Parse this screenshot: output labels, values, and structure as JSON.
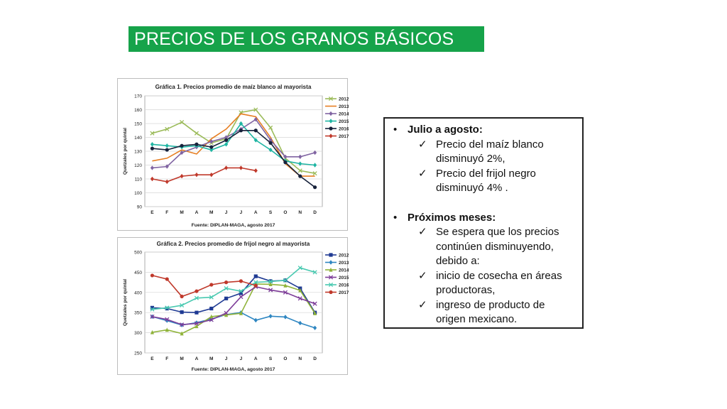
{
  "header": {
    "title": "PRECIOS DE LOS GRANOS BÁSICOS"
  },
  "colors": {
    "title_bg": "#16a34a"
  },
  "chart_data": [
    {
      "type": "line",
      "title": "Gráfica 1. Precios promedio de maíz blanco al mayorista",
      "ylabel": "Quetzales por quintal",
      "xlabel": "",
      "source": "Fuente: DIPLAN-MAGA, agosto 2017",
      "categories": [
        "E",
        "F",
        "M",
        "A",
        "M",
        "J",
        "J",
        "A",
        "S",
        "O",
        "N",
        "D"
      ],
      "ylim": [
        90,
        170
      ],
      "yticks": [
        90,
        100,
        110,
        120,
        130,
        140,
        150,
        160,
        170
      ],
      "grid": true,
      "legend_position": "right",
      "series": [
        {
          "name": "2012",
          "color": "#9bbb59",
          "marker": "x",
          "values": [
            143,
            146,
            151,
            143,
            136,
            139,
            158,
            160,
            147,
            125,
            116,
            114
          ]
        },
        {
          "name": "2013",
          "color": "#e67e22",
          "marker": "none",
          "values": [
            123,
            125,
            131,
            128,
            139,
            146,
            157,
            155,
            140,
            121,
            112,
            112
          ]
        },
        {
          "name": "2014",
          "color": "#8064a2",
          "marker": "diamond",
          "values": [
            118,
            119,
            129,
            133,
            137,
            140,
            146,
            153,
            138,
            126,
            126,
            129
          ]
        },
        {
          "name": "2015",
          "color": "#1fb5a3",
          "marker": "diamond",
          "values": [
            135,
            134,
            133,
            134,
            131,
            135,
            150,
            138,
            131,
            123,
            121,
            120
          ]
        },
        {
          "name": "2016",
          "color": "#17223b",
          "marker": "circle",
          "values": [
            132,
            131,
            134,
            135,
            133,
            138,
            145,
            145,
            136,
            122,
            112,
            104
          ]
        },
        {
          "name": "2017",
          "color": "#c0392b",
          "marker": "diamond",
          "values": [
            110,
            108,
            112,
            113,
            113,
            118,
            118,
            116,
            null,
            null,
            null,
            null
          ]
        }
      ]
    },
    {
      "type": "line",
      "title": "Gráfica 2. Precios promedio de frijol negro al mayorista",
      "ylabel": "Quetzales por quintal",
      "xlabel": "",
      "source": "Fuente: DIPLAN-MAGA, agosto 2017",
      "categories": [
        "E",
        "F",
        "M",
        "A",
        "M",
        "J",
        "J",
        "A",
        "S",
        "O",
        "N",
        "D"
      ],
      "ylim": [
        250,
        500
      ],
      "yticks": [
        250,
        300,
        350,
        400,
        450,
        500
      ],
      "grid": true,
      "legend_position": "right",
      "series": [
        {
          "name": "2012",
          "color": "#1f3a93",
          "marker": "square",
          "values": [
            362,
            360,
            351,
            350,
            360,
            385,
            398,
            440,
            428,
            430,
            410,
            350
          ]
        },
        {
          "name": "2013",
          "color": "#2e86c1",
          "marker": "diamond",
          "values": [
            340,
            330,
            319,
            325,
            334,
            345,
            350,
            331,
            341,
            339,
            324,
            312
          ]
        },
        {
          "name": "2014",
          "color": "#8fb339",
          "marker": "triangle",
          "values": [
            301,
            307,
            298,
            316,
            340,
            344,
            348,
            421,
            420,
            417,
            405,
            348
          ]
        },
        {
          "name": "2015",
          "color": "#7d3c98",
          "marker": "x",
          "values": [
            340,
            333,
            320,
            323,
            332,
            349,
            389,
            414,
            406,
            400,
            385,
            372
          ]
        },
        {
          "name": "2016",
          "color": "#48c9b0",
          "marker": "x",
          "values": [
            358,
            362,
            368,
            386,
            388,
            410,
            403,
            425,
            427,
            430,
            461,
            450
          ]
        },
        {
          "name": "2017",
          "color": "#c0392b",
          "marker": "circle",
          "values": [
            442,
            433,
            390,
            403,
            419,
            425,
            428,
            417,
            null,
            null,
            null,
            null
          ]
        }
      ]
    }
  ],
  "summary": {
    "s1_title": "Julio a agosto:",
    "s1_items": [
      "Precio del maíz blanco disminuyó 2%,",
      "Precio del frijol negro disminuyó 4% ."
    ],
    "s2_title": "Próximos meses:",
    "s2_items": [
      "Se espera que los precios continúen disminuyendo, debido a:",
      "inicio de cosecha en áreas productoras,",
      "ingreso de producto de origen mexicano."
    ]
  }
}
